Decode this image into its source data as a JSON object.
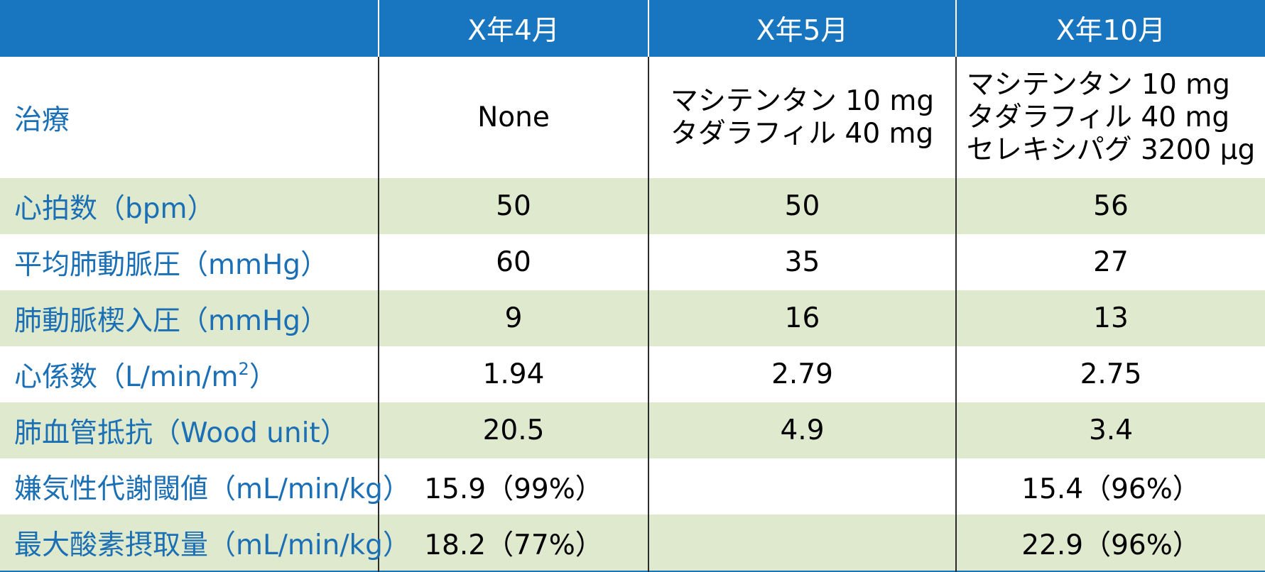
{
  "header": {
    "corner": "",
    "columns": [
      "X年4月",
      "X年5月",
      "X年10月"
    ]
  },
  "rows": [
    {
      "label": "治療",
      "cells": [
        {
          "lines": [
            "None"
          ]
        },
        {
          "lines": [
            "マシテンタン 10 mg",
            "タダラフィル 40 mg"
          ]
        },
        {
          "lines": [
            "マシテンタン 10 mg",
            "タダラフィル 40 mg",
            "セレキシパグ 3200 μg"
          ]
        }
      ]
    },
    {
      "label": "心拍数（bpm）",
      "values": [
        "50",
        "50",
        "56"
      ]
    },
    {
      "label": "平均肺動脈圧（mmHg）",
      "values": [
        "60",
        "35",
        "27"
      ]
    },
    {
      "label": "肺動脈楔入圧（mmHg）",
      "values": [
        "9",
        "16",
        "13"
      ]
    },
    {
      "label_main": "心係数（L/min/m",
      "label_sup": "2",
      "label_end": "）",
      "values": [
        "1.94",
        "2.79",
        "2.75"
      ]
    },
    {
      "label": "肺血管抵抗（Wood unit）",
      "values": [
        "20.5",
        "4.9",
        "3.4"
      ]
    },
    {
      "label": "嫌気性代謝閾値（mL/min/kg）",
      "values": [
        "15.9（99%）",
        "",
        "15.4（96%）"
      ]
    },
    {
      "label": "最大酸素摂取量（mL/min/kg）",
      "values": [
        "18.2（77%）",
        "",
        "22.9（96%）"
      ]
    }
  ],
  "colors": {
    "header_bg": "#1875bf",
    "header_text": "#ffffff",
    "label_text": "#1a6fb5",
    "shade_row": "#dfe9cd",
    "plain_row": "#ffffff"
  }
}
